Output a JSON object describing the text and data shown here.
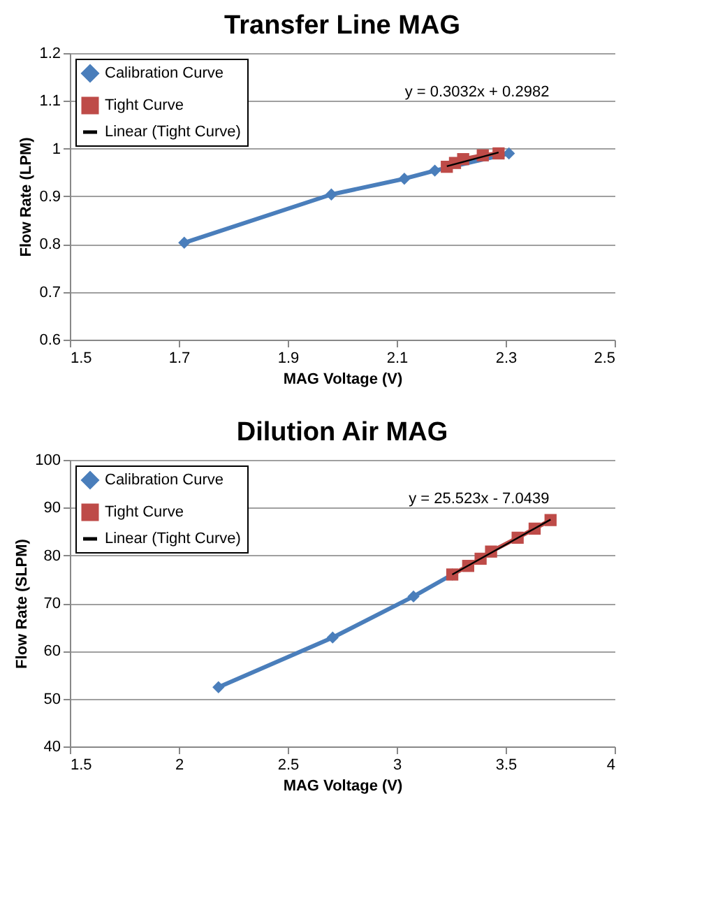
{
  "chart_data": [
    {
      "type": "line",
      "title": "Transfer Line MAG",
      "xlabel": "MAG Voltage (V)",
      "ylabel": "Flow Rate (LPM)",
      "xlim": [
        1.5,
        2.5
      ],
      "xticks": [
        1.5,
        1.7,
        1.9,
        2.1,
        2.3,
        2.5
      ],
      "ylim": [
        0.6,
        1.2
      ],
      "yticks": [
        0.6,
        0.7,
        0.8,
        0.9,
        1,
        1.1,
        1.2
      ],
      "grid": "y",
      "legend": "top left",
      "series": [
        {
          "name": "Calibration Curve",
          "color": "#4a7ebb",
          "marker": "diamond",
          "x": [
            1.71,
            1.98,
            2.114,
            2.17,
            2.306
          ],
          "values": [
            0.803,
            0.904,
            0.937,
            0.954,
            0.99
          ]
        },
        {
          "name": "Tight Curve",
          "color": "#be4b48",
          "marker": "square",
          "x": [
            2.192,
            2.207,
            2.222,
            2.258,
            2.287
          ],
          "values": [
            0.962,
            0.97,
            0.978,
            0.986,
            0.99
          ]
        },
        {
          "name": "Linear (Tight Curve)",
          "color": "#000000",
          "marker": "none",
          "x": [
            2.192,
            2.287
          ],
          "values": [
            0.963,
            0.992
          ]
        }
      ],
      "annotations": [
        "y = 0.3032x + 0.2982"
      ]
    },
    {
      "type": "line",
      "title": "Dilution Air MAG",
      "xlabel": "MAG Voltage (V)",
      "ylabel": "Flow Rate (SLPM)",
      "xlim": [
        1.5,
        4
      ],
      "xticks": [
        1.5,
        2,
        2.5,
        3,
        3.5,
        4
      ],
      "ylim": [
        40,
        100
      ],
      "yticks": [
        40,
        50,
        60,
        70,
        80,
        90,
        100
      ],
      "grid": "y",
      "legend": "top left",
      "series": [
        {
          "name": "Calibration Curve",
          "color": "#4a7ebb",
          "marker": "diamond",
          "x": [
            2.182,
            2.706,
            3.077,
            3.255
          ],
          "values": [
            52.4,
            62.8,
            71.4,
            76.0
          ]
        },
        {
          "name": "Tight Curve",
          "color": "#be4b48",
          "marker": "square",
          "x": [
            3.255,
            3.328,
            3.385,
            3.433,
            3.555,
            3.633,
            3.706
          ],
          "values": [
            76.0,
            77.8,
            79.3,
            80.8,
            83.7,
            85.6,
            87.4
          ]
        },
        {
          "name": "Linear (Tight Curve)",
          "color": "#000000",
          "marker": "none",
          "x": [
            3.255,
            3.706
          ],
          "values": [
            76.0,
            87.5
          ]
        }
      ],
      "annotations": [
        "y = 25.523x - 7.0439"
      ]
    }
  ]
}
